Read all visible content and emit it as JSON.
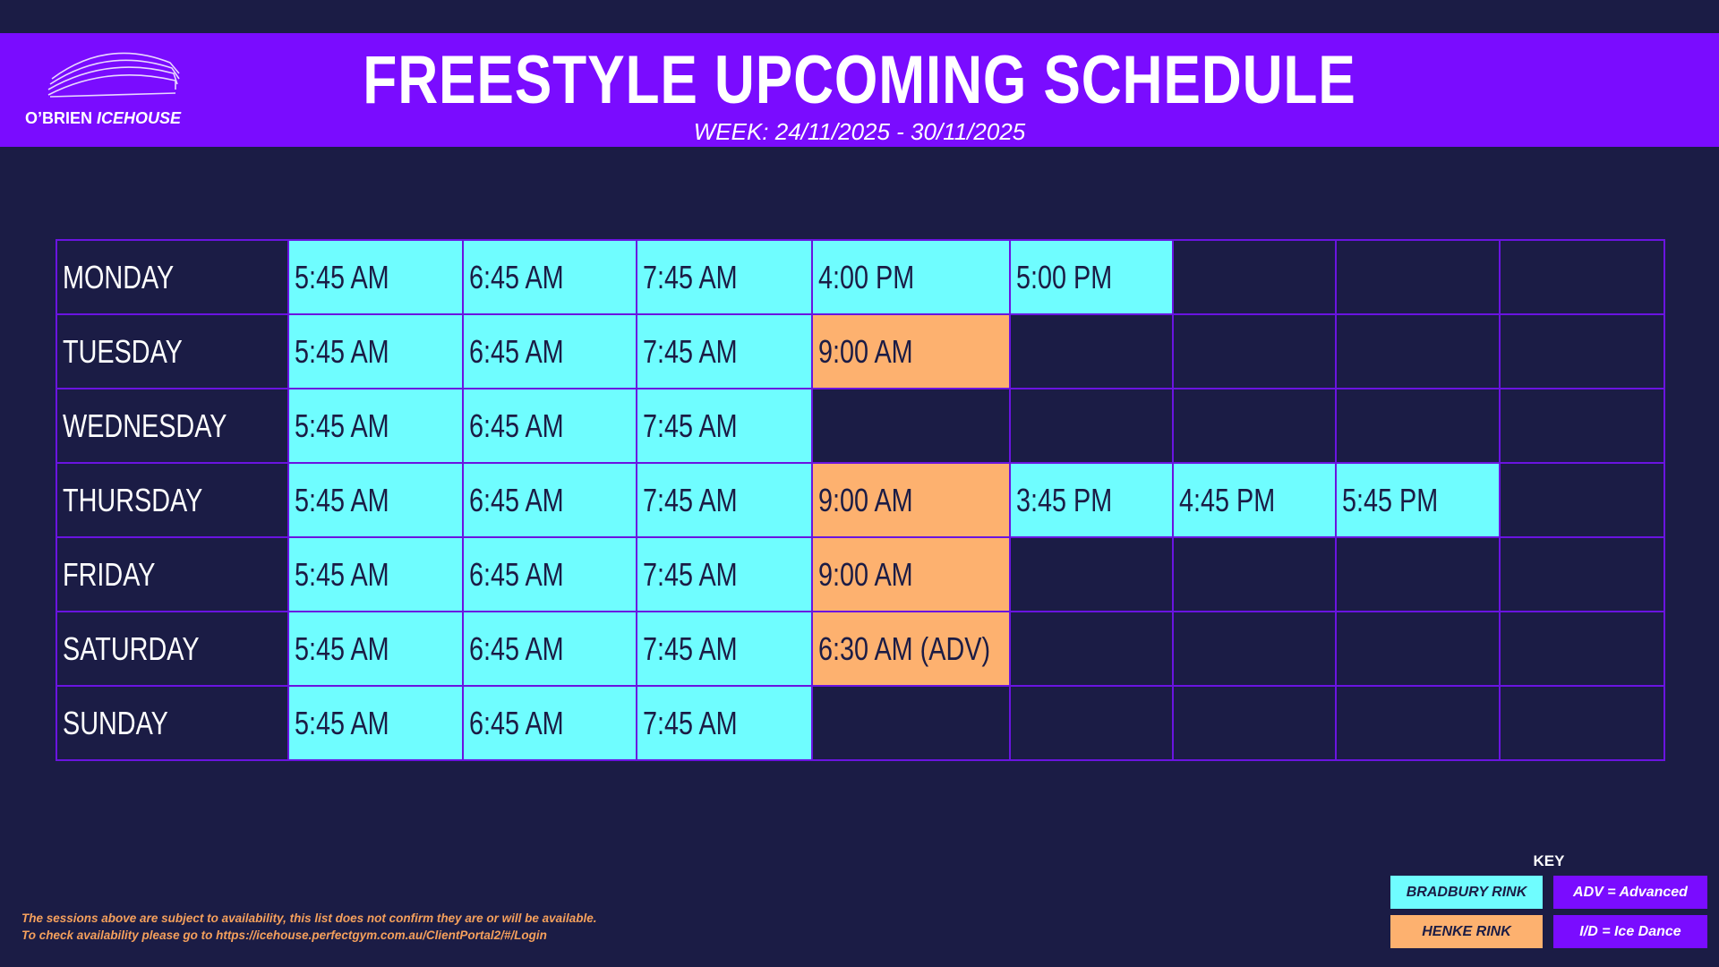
{
  "logo": {
    "name1": "O’BRIEN",
    "name2": "ICEHOUSE"
  },
  "header": {
    "title": "FREESTYLE UPCOMING SCHEDULE",
    "subtitle": "WEEK: 24/11/2025 - 30/11/2025"
  },
  "table": {
    "rows": [
      {
        "day": "MONDAY",
        "sessions": [
          {
            "time": "5:45 AM",
            "color": "#6ffdff"
          },
          {
            "time": "6:45 AM",
            "color": "#6ffdff"
          },
          {
            "time": "7:45 AM",
            "color": "#6ffdff"
          },
          {
            "time": "4:00 PM",
            "color": "#6ffdff"
          },
          {
            "time": "5:00 PM",
            "color": "#6ffdff"
          }
        ]
      },
      {
        "day": "TUESDAY",
        "sessions": [
          {
            "time": "5:45 AM",
            "color": "#6ffdff"
          },
          {
            "time": "6:45 AM",
            "color": "#6ffdff"
          },
          {
            "time": "7:45 AM",
            "color": "#6ffdff"
          },
          {
            "time": "9:00 AM",
            "color": "#fdb16f"
          }
        ]
      },
      {
        "day": "WEDNESDAY",
        "sessions": [
          {
            "time": "5:45 AM",
            "color": "#6ffdff"
          },
          {
            "time": "6:45 AM",
            "color": "#6ffdff"
          },
          {
            "time": "7:45 AM",
            "color": "#6ffdff"
          }
        ]
      },
      {
        "day": "THURSDAY",
        "sessions": [
          {
            "time": "5:45 AM",
            "color": "#6ffdff"
          },
          {
            "time": "6:45 AM",
            "color": "#6ffdff"
          },
          {
            "time": "7:45 AM",
            "color": "#6ffdff"
          },
          {
            "time": "9:00 AM",
            "color": "#fdb16f"
          },
          {
            "time": "3:45 PM",
            "color": "#6ffdff"
          },
          {
            "time": "4:45 PM",
            "color": "#6ffdff"
          },
          {
            "time": "5:45 PM",
            "color": "#6ffdff"
          }
        ]
      },
      {
        "day": "FRIDAY",
        "sessions": [
          {
            "time": "5:45 AM",
            "color": "#6ffdff"
          },
          {
            "time": "6:45 AM",
            "color": "#6ffdff"
          },
          {
            "time": "7:45 AM",
            "color": "#6ffdff"
          },
          {
            "time": "9:00 AM",
            "color": "#fdb16f"
          }
        ]
      },
      {
        "day": "SATURDAY",
        "sessions": [
          {
            "time": "5:45 AM",
            "color": "#6ffdff"
          },
          {
            "time": "6:45 AM",
            "color": "#6ffdff"
          },
          {
            "time": "7:45 AM",
            "color": "#6ffdff"
          },
          {
            "time": "6:30 AM (ADV)",
            "color": "#fdb16f"
          }
        ]
      },
      {
        "day": "SUNDAY",
        "sessions": [
          {
            "time": "5:45 AM",
            "color": "#6ffdff"
          },
          {
            "time": "6:45 AM",
            "color": "#6ffdff"
          },
          {
            "time": "7:45 AM",
            "color": "#6ffdff"
          }
        ]
      }
    ]
  },
  "notes": [
    "The sessions above are subject to availability, this list does not confirm they are or will be available.",
    "To check availability please go to https://icehouse.perfectgym.com.au/ClientPortal2/#/Login"
  ],
  "key": {
    "title": "KEY",
    "items": [
      {
        "label": "BRADBURY RINK",
        "color": "#6ffdff"
      },
      {
        "label": "HENKE RINK",
        "color": "#fdb16f"
      },
      {
        "label": "ADV = Advanced",
        "color": "#7a0cff"
      },
      {
        "label": "I/D = Ice Dance",
        "color": "#7a0cff"
      }
    ]
  }
}
